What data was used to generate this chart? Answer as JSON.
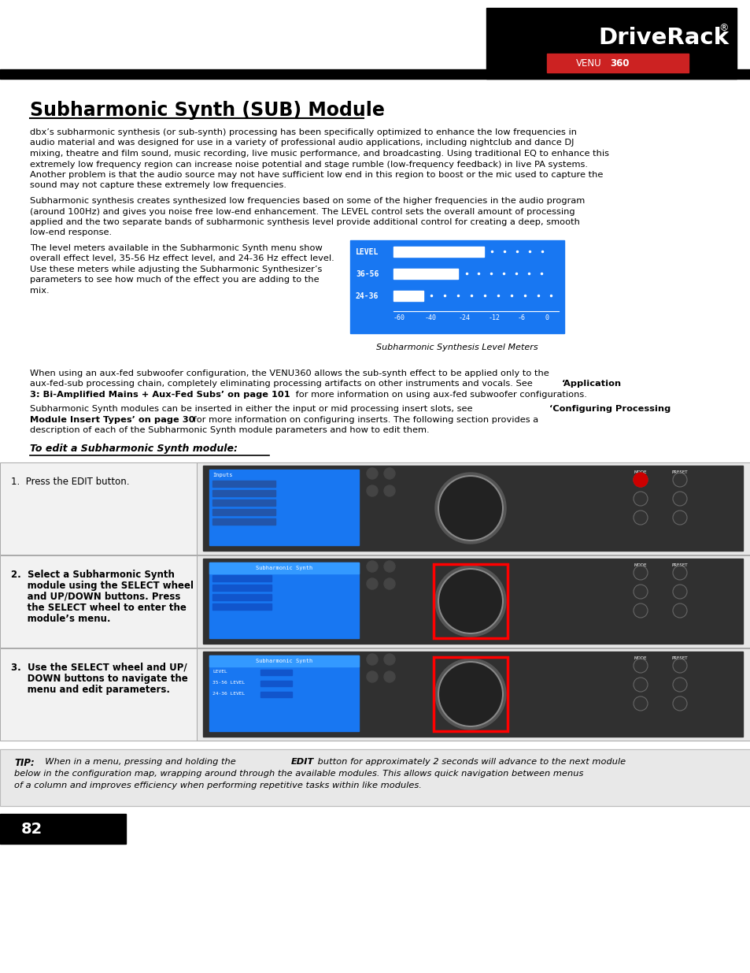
{
  "title": "Subharmonic Synth (SUB) Module",
  "bg_color": "#ffffff",
  "header_bar_color": "#000000",
  "logo_text": "DriveRack",
  "logo_subtext": "VENU360",
  "logo_bg_color": "#000000",
  "logo_red_color": "#cc2222",
  "page_number": "82",
  "page_num_bg": "#000000",
  "page_num_color": "#ffffff",
  "body_text_color": "#000000",
  "tip_bg_color": "#e8e8e8",
  "screen_caption": "Subharmonic Synthesis Level Meters",
  "edit_title": "To edit a Subharmonic Synth module:",
  "p1_lines": [
    "dbx’s subharmonic synthesis (or sub-synth) processing has been specifically optimized to enhance the low frequencies in",
    "audio material and was designed for use in a variety of professional audio applications, including nightclub and dance DJ",
    "mixing, theatre and film sound, music recording, live music performance, and broadcasting. Using traditional EQ to enhance this",
    "extremely low frequency region can increase noise potential and stage rumble (low-frequency feedback) in live PA systems.",
    "Another problem is that the audio source may not have sufficient low end in this region to boost or the mic used to capture the",
    "sound may not capture these extremely low frequencies."
  ],
  "p2_lines": [
    "Subharmonic synthesis creates synthesized low frequencies based on some of the higher frequencies in the audio program",
    "(around 100Hz) and gives you noise free low-end enhancement. The LEVEL control sets the overall amount of processing",
    "applied and the two separate bands of subharmonic synthesis level provide additional control for creating a deep, smooth",
    "low-end response."
  ],
  "p3_lines": [
    "The level meters available in the Subharmonic Synth menu show",
    "overall effect level, 35-56 Hz effect level, and 24-36 Hz effect level.",
    "Use these meters while adjusting the Subharmonic Synthesizer’s",
    "parameters to see how much of the effect you are adding to the",
    "mix."
  ],
  "step1_text": "1.  Press the EDIT button.",
  "step2_lines": [
    "2.  Select a Subharmonic Synth",
    "     module using the SELECT wheel",
    "     and UP/DOWN buttons. Press",
    "     the SELECT wheel to enter the",
    "     module’s menu."
  ],
  "step3_lines": [
    "3.  Use the SELECT wheel and UP/",
    "     DOWN buttons to navigate the",
    "     menu and edit parameters."
  ],
  "tip_italic_bold": "TIP:",
  "tip_italic_normal1": "  When in a menu, pressing and holding the ",
  "tip_bold2": "EDIT",
  "tip_italic_normal2": " button for approximately 2 seconds will advance to the next module",
  "tip_line2": "below in the configuration map, wrapping around through the available modules. This allows quick navigation between menus",
  "tip_line3": "of a column and improves efficiency when performing repetitive tasks within like modules."
}
